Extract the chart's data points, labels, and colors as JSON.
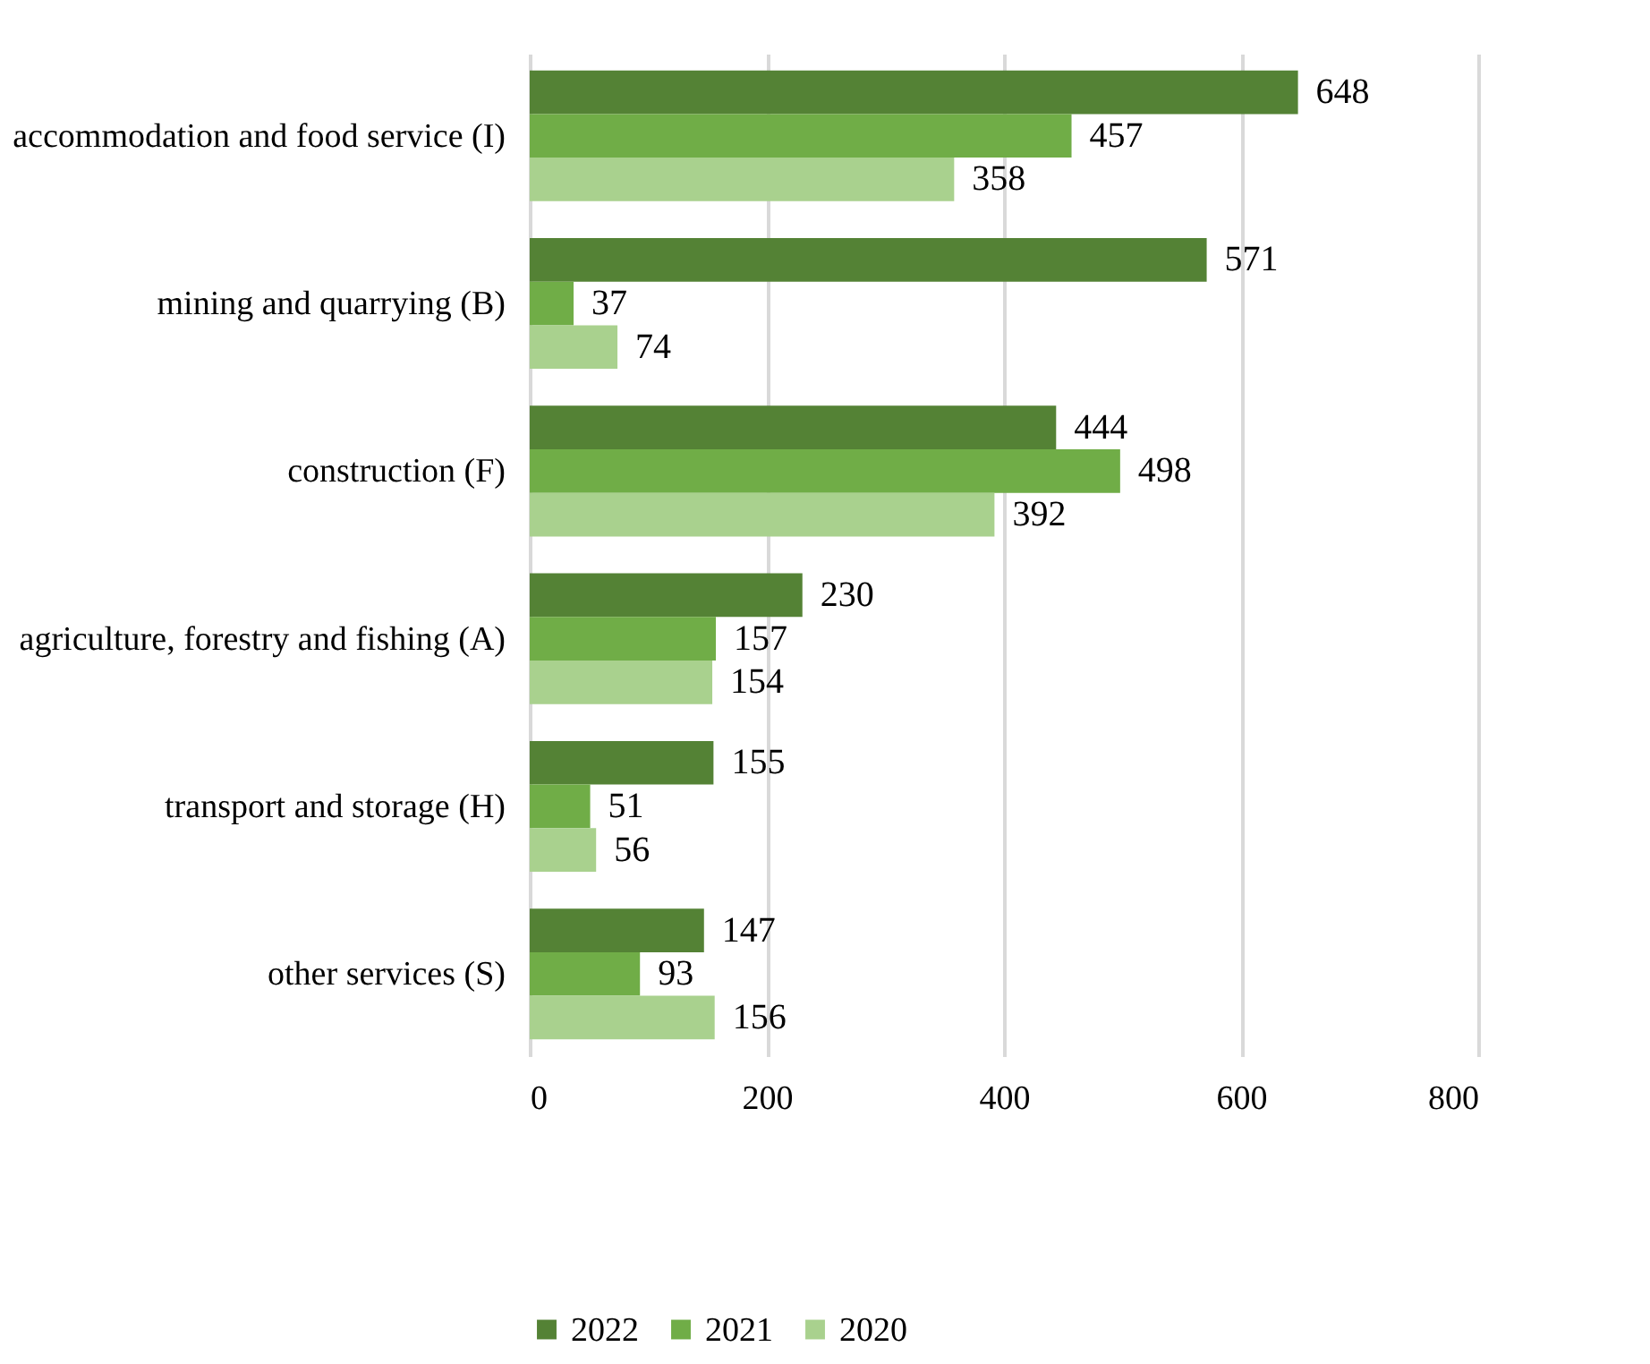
{
  "chart_data": {
    "type": "bar",
    "orientation": "horizontal",
    "categories": [
      "accommodation and food service (I)",
      "mining and quarrying (B)",
      "construction (F)",
      "agriculture, forestry and fishing (A)",
      "transport and storage (H)",
      "other services (S)"
    ],
    "series": [
      {
        "name": "2022",
        "color": "#548235",
        "values": [
          648,
          571,
          444,
          230,
          155,
          147
        ]
      },
      {
        "name": "2021",
        "color": "#70ad47",
        "values": [
          457,
          37,
          498,
          157,
          51,
          93
        ]
      },
      {
        "name": "2020",
        "color": "#a9d18e",
        "values": [
          358,
          74,
          392,
          154,
          56,
          156
        ]
      }
    ],
    "xlim": [
      0,
      800
    ],
    "xticks": [
      0,
      200,
      400,
      600,
      800
    ],
    "grid": "x",
    "legend": "bottom",
    "data_labels": true
  }
}
